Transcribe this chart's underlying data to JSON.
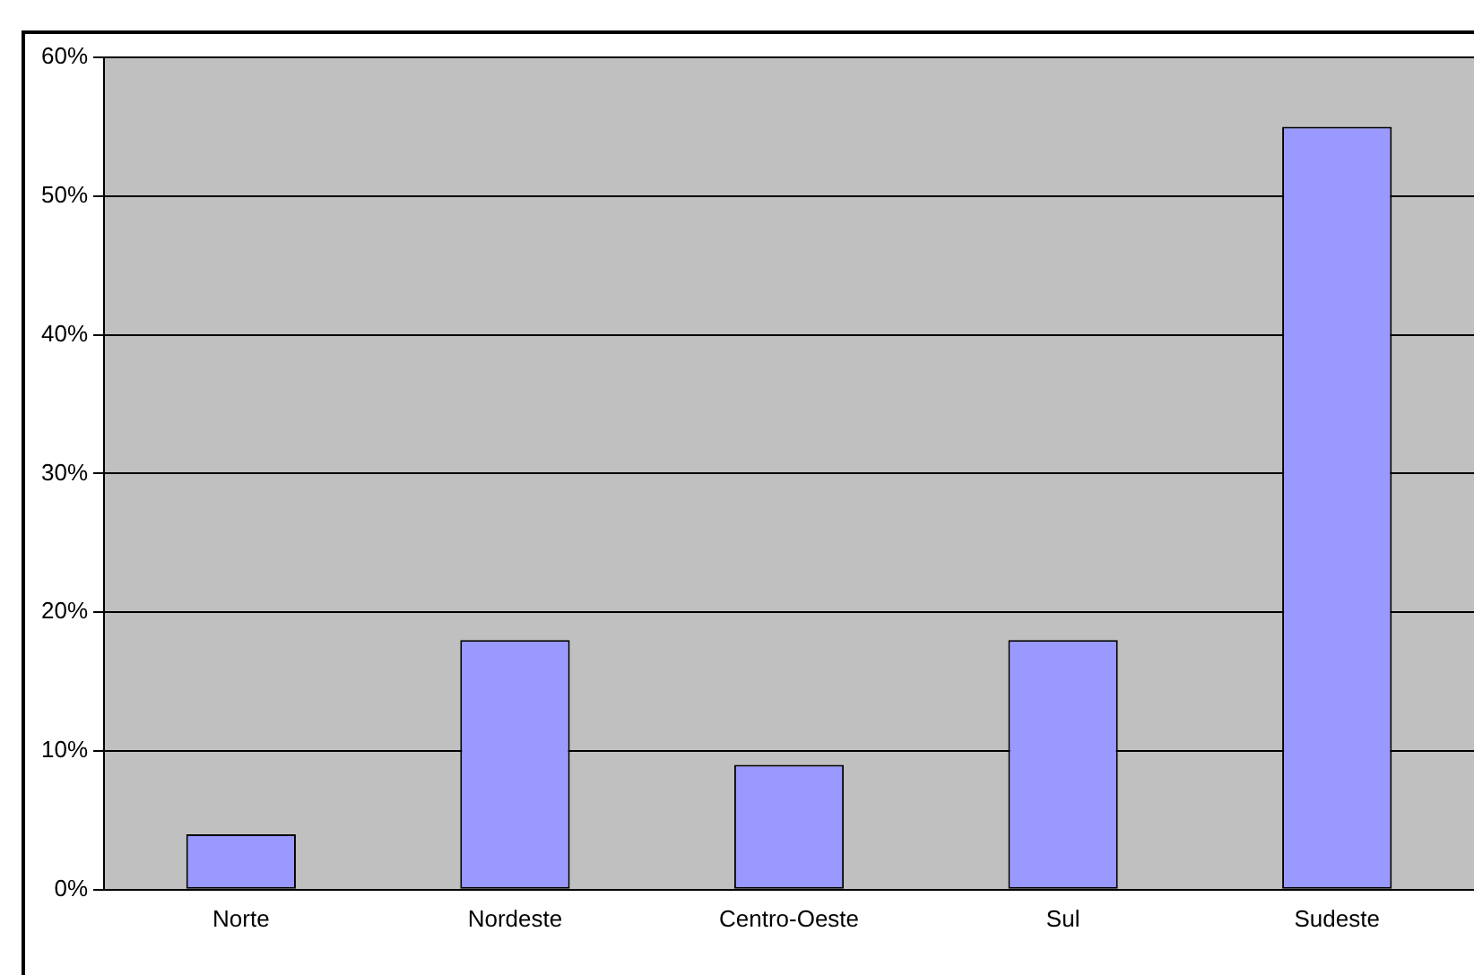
{
  "chart_data": {
    "type": "bar",
    "categories": [
      "Norte",
      "Nordeste",
      "Centro-Oeste",
      "Sul",
      "Sudeste"
    ],
    "values": [
      4,
      18,
      9,
      18,
      55
    ],
    "color": "#9999ff",
    "ylim": [
      0,
      60
    ],
    "yticks": [
      {
        "value": 0,
        "label": "0%"
      },
      {
        "value": 10,
        "label": "10%"
      },
      {
        "value": 20,
        "label": "20%"
      },
      {
        "value": 30,
        "label": "30%"
      },
      {
        "value": 40,
        "label": "40%"
      },
      {
        "value": 50,
        "label": "50%"
      },
      {
        "value": 60,
        "label": "60%"
      }
    ],
    "grid": "y",
    "legend": false
  }
}
